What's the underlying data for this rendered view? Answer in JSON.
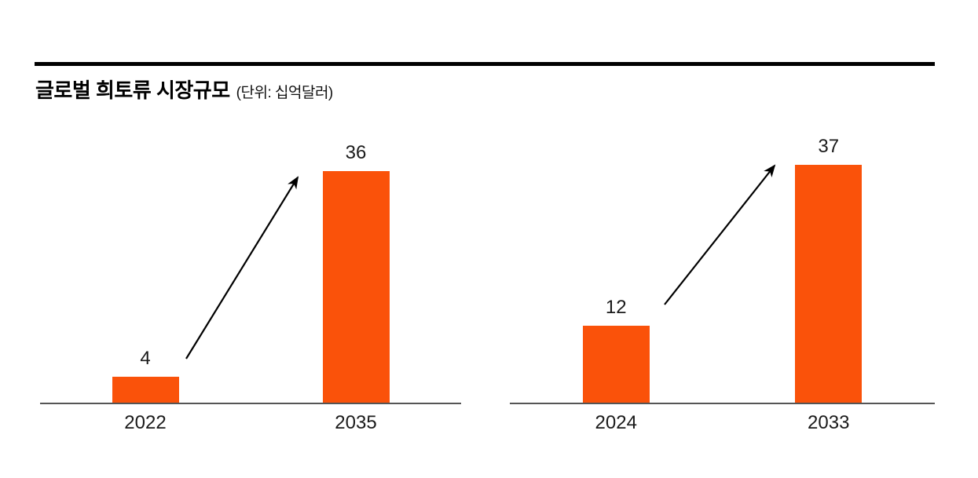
{
  "header": {
    "title": "글로벌 희토류 시장규모",
    "unit_label": "(단위: 십억달러)"
  },
  "colors": {
    "bar": "#FA520A",
    "axis": "#555555",
    "label_text": "#1A1A1A",
    "title_text": "#000000",
    "top_rule": "#000000",
    "arrow": "#000000",
    "background": "#FFFFFF"
  },
  "chart_data": [
    {
      "type": "bar",
      "categories": [
        "2022",
        "2035"
      ],
      "values": [
        4,
        36
      ],
      "bar_color": "#FA520A",
      "ylim": [
        0,
        43
      ],
      "grid": false,
      "annotation": "growth-arrow-up-right"
    },
    {
      "type": "bar",
      "categories": [
        "2024",
        "2033"
      ],
      "values": [
        12,
        37
      ],
      "bar_color": "#FA520A",
      "ylim": [
        0,
        43
      ],
      "grid": false,
      "annotation": "growth-arrow-up-right"
    }
  ]
}
